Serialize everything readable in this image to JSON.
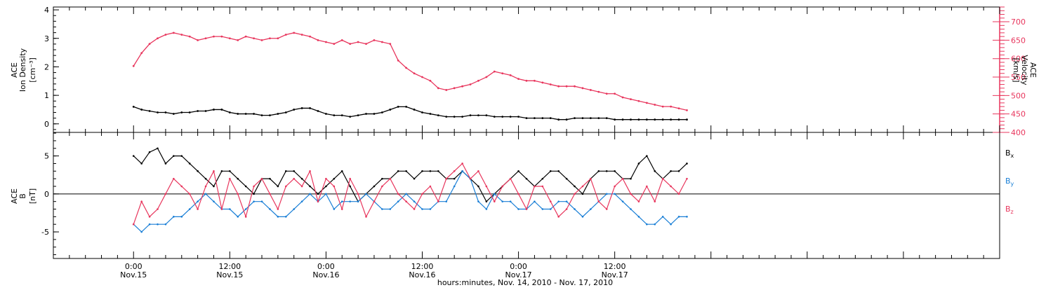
{
  "colors": {
    "black": "#000000",
    "velocity": "#e8365d",
    "by": "#1a7fd6",
    "bz": "#e8365d"
  },
  "chart_data": [
    {
      "type": "scatter",
      "panel": "top",
      "left_axis": {
        "label_line1": "ACE",
        "label_line2": "Ion Density",
        "units": "[cm⁻³]",
        "ylim": [
          -0.3,
          4.1
        ],
        "ticks": [
          "0",
          "1",
          "2",
          "3",
          "4"
        ]
      },
      "right_axis": {
        "label_line1": "ACE",
        "label_line2": "Velocity",
        "units": "[km/s]",
        "ylim": [
          400,
          740
        ],
        "ticks": [
          "400",
          "450",
          "500",
          "550",
          "600",
          "650",
          "700"
        ]
      },
      "series": [
        {
          "role": "density",
          "x_hours": [
            0,
            1,
            2,
            3,
            4,
            5,
            6,
            7,
            8,
            9,
            10,
            11,
            12,
            13,
            14,
            15,
            16,
            17,
            18,
            19,
            20,
            21,
            22,
            23,
            24,
            25,
            26,
            27,
            28,
            29,
            30,
            31,
            32,
            33,
            34,
            35,
            36,
            37,
            38,
            39,
            40,
            41,
            42,
            43,
            44,
            45,
            46,
            47,
            48,
            49,
            50,
            51,
            52,
            53,
            54,
            55,
            56,
            57,
            58,
            59,
            60,
            61,
            62,
            63,
            64,
            65,
            66,
            67,
            68,
            69
          ],
          "y": [
            0.6,
            0.5,
            0.45,
            0.4,
            0.4,
            0.35,
            0.4,
            0.4,
            0.45,
            0.45,
            0.5,
            0.5,
            0.4,
            0.35,
            0.35,
            0.35,
            0.3,
            0.3,
            0.35,
            0.4,
            0.5,
            0.55,
            0.55,
            0.45,
            0.35,
            0.3,
            0.3,
            0.25,
            0.3,
            0.35,
            0.35,
            0.4,
            0.5,
            0.6,
            0.6,
            0.5,
            0.4,
            0.35,
            0.3,
            0.25,
            0.25,
            0.25,
            0.3,
            0.3,
            0.3,
            0.25,
            0.25,
            0.25,
            0.25,
            0.2,
            0.2,
            0.2,
            0.2,
            0.15,
            0.15,
            0.2,
            0.2,
            0.2,
            0.2,
            0.2,
            0.15,
            0.15,
            0.15,
            0.15,
            0.15,
            0.15,
            0.15,
            0.15,
            0.15,
            0.15
          ]
        },
        {
          "role": "velocity",
          "x_hours": [
            0,
            1,
            2,
            3,
            4,
            5,
            6,
            7,
            8,
            9,
            10,
            11,
            12,
            13,
            14,
            15,
            16,
            17,
            18,
            19,
            20,
            21,
            22,
            23,
            24,
            25,
            26,
            27,
            28,
            29,
            30,
            31,
            32,
            33,
            34,
            35,
            36,
            37,
            38,
            39,
            40,
            41,
            42,
            43,
            44,
            45,
            46,
            47,
            48,
            49,
            50,
            51,
            52,
            53,
            54,
            55,
            56,
            57,
            58,
            59,
            60,
            61,
            62,
            63,
            64,
            65,
            66,
            67,
            68,
            69
          ],
          "y": [
            580,
            615,
            640,
            655,
            665,
            670,
            665,
            660,
            650,
            655,
            660,
            660,
            655,
            650,
            660,
            655,
            650,
            655,
            655,
            665,
            670,
            665,
            660,
            650,
            645,
            640,
            650,
            640,
            645,
            640,
            650,
            645,
            640,
            595,
            575,
            560,
            550,
            540,
            520,
            515,
            520,
            525,
            530,
            540,
            550,
            565,
            560,
            555,
            545,
            540,
            540,
            535,
            530,
            525,
            525,
            525,
            520,
            515,
            510,
            505,
            505,
            495,
            490,
            485,
            480,
            475,
            470,
            470,
            465,
            460
          ]
        }
      ]
    },
    {
      "type": "line",
      "panel": "bottom",
      "left_axis": {
        "label_line1": "ACE",
        "label_line2": "B",
        "units": "[nT]",
        "ylim": [
          -8.5,
          8.1
        ],
        "ticks": [
          "-5",
          "0",
          "5"
        ]
      },
      "legend": [
        "Bₓ",
        "Bᵧ",
        "B_z"
      ],
      "legend_text": {
        "bx": "B",
        "bx_sub": "x",
        "by": "B",
        "by_sub": "y",
        "bz": "B",
        "bz_sub": "z"
      },
      "series": [
        {
          "name": "Bx",
          "x_hours": [
            0,
            1,
            2,
            3,
            4,
            5,
            6,
            7,
            8,
            9,
            10,
            11,
            12,
            13,
            14,
            15,
            16,
            17,
            18,
            19,
            20,
            21,
            22,
            23,
            24,
            25,
            26,
            27,
            28,
            29,
            30,
            31,
            32,
            33,
            34,
            35,
            36,
            37,
            38,
            39,
            40,
            41,
            42,
            43,
            44,
            45,
            46,
            47,
            48,
            49,
            50,
            51,
            52,
            53,
            54,
            55,
            56,
            57,
            58,
            59,
            60,
            61,
            62,
            63,
            64,
            65,
            66,
            67,
            68,
            69
          ],
          "y": [
            5,
            4,
            5.5,
            6,
            4,
            5,
            5,
            4,
            3,
            2,
            1,
            3,
            3,
            2,
            1,
            0,
            2,
            2,
            1,
            3,
            3,
            2,
            1,
            0,
            1,
            2,
            3,
            1,
            -1,
            0,
            1,
            2,
            2,
            3,
            3,
            2,
            3,
            3,
            3,
            2,
            2,
            3,
            2,
            1,
            -1,
            0,
            1,
            2,
            3,
            2,
            1,
            2,
            3,
            3,
            2,
            1,
            0,
            2,
            3,
            3,
            3,
            2,
            2,
            4,
            5,
            3,
            2,
            3,
            3,
            4
          ]
        },
        {
          "name": "By",
          "x_hours": [
            0,
            1,
            2,
            3,
            4,
            5,
            6,
            7,
            8,
            9,
            10,
            11,
            12,
            13,
            14,
            15,
            16,
            17,
            18,
            19,
            20,
            21,
            22,
            23,
            24,
            25,
            26,
            27,
            28,
            29,
            30,
            31,
            32,
            33,
            34,
            35,
            36,
            37,
            38,
            39,
            40,
            41,
            42,
            43,
            44,
            45,
            46,
            47,
            48,
            49,
            50,
            51,
            52,
            53,
            54,
            55,
            56,
            57,
            58,
            59,
            60,
            61,
            62,
            63,
            64,
            65,
            66,
            67,
            68,
            69
          ],
          "y": [
            -4,
            -5,
            -4,
            -4,
            -4,
            -3,
            -3,
            -2,
            -1,
            0,
            -1,
            -2,
            -2,
            -3,
            -2,
            -1,
            -1,
            -2,
            -3,
            -3,
            -2,
            -1,
            0,
            -1,
            0,
            -2,
            -1,
            -1,
            -1,
            0,
            -1,
            -2,
            -2,
            -1,
            0,
            -1,
            -2,
            -2,
            -1,
            -1,
            1,
            3,
            2,
            -1,
            -2,
            0,
            -1,
            -1,
            -2,
            -2,
            -1,
            -2,
            -2,
            -1,
            -1,
            -2,
            -3,
            -2,
            -1,
            0,
            0,
            -1,
            -2,
            -3,
            -4,
            -4,
            -3,
            -4,
            -3,
            -3
          ]
        },
        {
          "name": "Bz",
          "x_hours": [
            0,
            1,
            2,
            3,
            4,
            5,
            6,
            7,
            8,
            9,
            10,
            11,
            12,
            13,
            14,
            15,
            16,
            17,
            18,
            19,
            20,
            21,
            22,
            23,
            24,
            25,
            26,
            27,
            28,
            29,
            30,
            31,
            32,
            33,
            34,
            35,
            36,
            37,
            38,
            39,
            40,
            41,
            42,
            43,
            44,
            45,
            46,
            47,
            48,
            49,
            50,
            51,
            52,
            53,
            54,
            55,
            56,
            57,
            58,
            59,
            60,
            61,
            62,
            63,
            64,
            65,
            66,
            67,
            68,
            69
          ],
          "y": [
            -4,
            -1,
            -3,
            -2,
            0,
            2,
            1,
            0,
            -2,
            1,
            3,
            -2,
            2,
            0,
            -3,
            1,
            2,
            0,
            -2,
            1,
            2,
            1,
            3,
            -1,
            2,
            1,
            -2,
            2,
            0,
            -3,
            -1,
            1,
            2,
            0,
            -1,
            -2,
            0,
            1,
            -1,
            2,
            3,
            4,
            2,
            3,
            1,
            -1,
            1,
            2,
            0,
            -2,
            1,
            1,
            -1,
            -3,
            -2,
            0,
            1,
            2,
            -1,
            -2,
            1,
            2,
            0,
            -1,
            1,
            -1,
            2,
            1,
            0,
            2
          ]
        }
      ]
    }
  ],
  "x_axis": {
    "range_hours": [
      -10,
      108
    ],
    "title": "hours:minutes, Nov. 14, 2010 - Nov. 17, 2010",
    "tick_labels": [
      {
        "h": 0,
        "time": "0:00",
        "day": "Nov.15"
      },
      {
        "h": 12,
        "time": "12:00",
        "day": "Nov.15"
      },
      {
        "h": 24,
        "time": "0:00",
        "day": "Nov.16"
      },
      {
        "h": 36,
        "time": "12:00",
        "day": "Nov.16"
      },
      {
        "h": 48,
        "time": "0:00",
        "day": "Nov.17"
      },
      {
        "h": 60,
        "time": "12:00",
        "day": "Nov.17"
      }
    ]
  }
}
